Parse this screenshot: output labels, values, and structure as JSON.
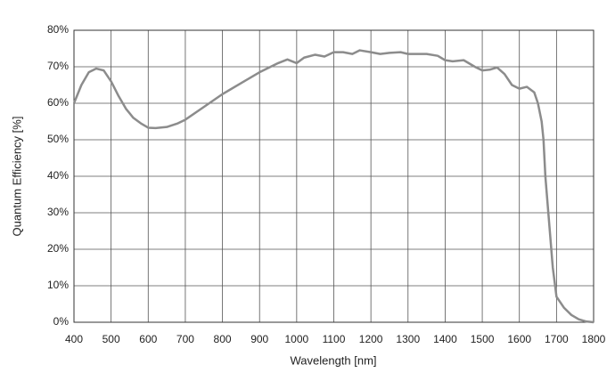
{
  "chart_data": {
    "type": "line",
    "xlabel": "Wavelength [nm]",
    "ylabel": "Quantum Efficiency [%]",
    "x": [
      400,
      420,
      440,
      460,
      480,
      500,
      520,
      540,
      560,
      580,
      600,
      620,
      650,
      680,
      700,
      750,
      800,
      850,
      900,
      950,
      975,
      1000,
      1020,
      1050,
      1075,
      1100,
      1125,
      1150,
      1170,
      1200,
      1225,
      1250,
      1280,
      1300,
      1350,
      1380,
      1400,
      1420,
      1450,
      1480,
      1500,
      1520,
      1540,
      1560,
      1580,
      1600,
      1620,
      1640,
      1650,
      1660,
      1665,
      1670,
      1678,
      1682,
      1690,
      1700,
      1720,
      1740,
      1760,
      1780,
      1800
    ],
    "values": [
      60,
      65,
      68.5,
      69.5,
      69,
      66,
      62,
      58.5,
      56,
      54.5,
      53.3,
      53.2,
      53.5,
      54.5,
      55.5,
      59,
      62.5,
      65.5,
      68.5,
      71,
      72,
      71,
      72.5,
      73.3,
      72.8,
      74,
      74,
      73.5,
      74.5,
      74,
      73.5,
      73.8,
      74,
      73.5,
      73.5,
      73,
      71.8,
      71.5,
      71.8,
      70,
      69,
      69.2,
      69.8,
      68,
      65,
      64,
      64.5,
      63,
      60,
      55,
      50,
      40,
      30,
      25,
      15,
      7,
      4,
      2,
      0.8,
      0.2,
      0
    ],
    "color": "#8c8c8c",
    "xlim": [
      400,
      1800
    ],
    "xticks": [
      400,
      500,
      600,
      700,
      800,
      900,
      1000,
      1100,
      1200,
      1300,
      1400,
      1500,
      1600,
      1700,
      1800
    ],
    "ylim": [
      0,
      80
    ],
    "yticks": [
      {
        "value": 0,
        "label": "0%"
      },
      {
        "value": 10,
        "label": "10%"
      },
      {
        "value": 20,
        "label": "20%"
      },
      {
        "value": 30,
        "label": "30%"
      },
      {
        "value": 40,
        "label": "40%"
      },
      {
        "value": 50,
        "label": "50%"
      },
      {
        "value": 60,
        "label": "60%"
      },
      {
        "value": 70,
        "label": "70%"
      },
      {
        "value": 80,
        "label": "80%"
      }
    ],
    "grid": true
  }
}
